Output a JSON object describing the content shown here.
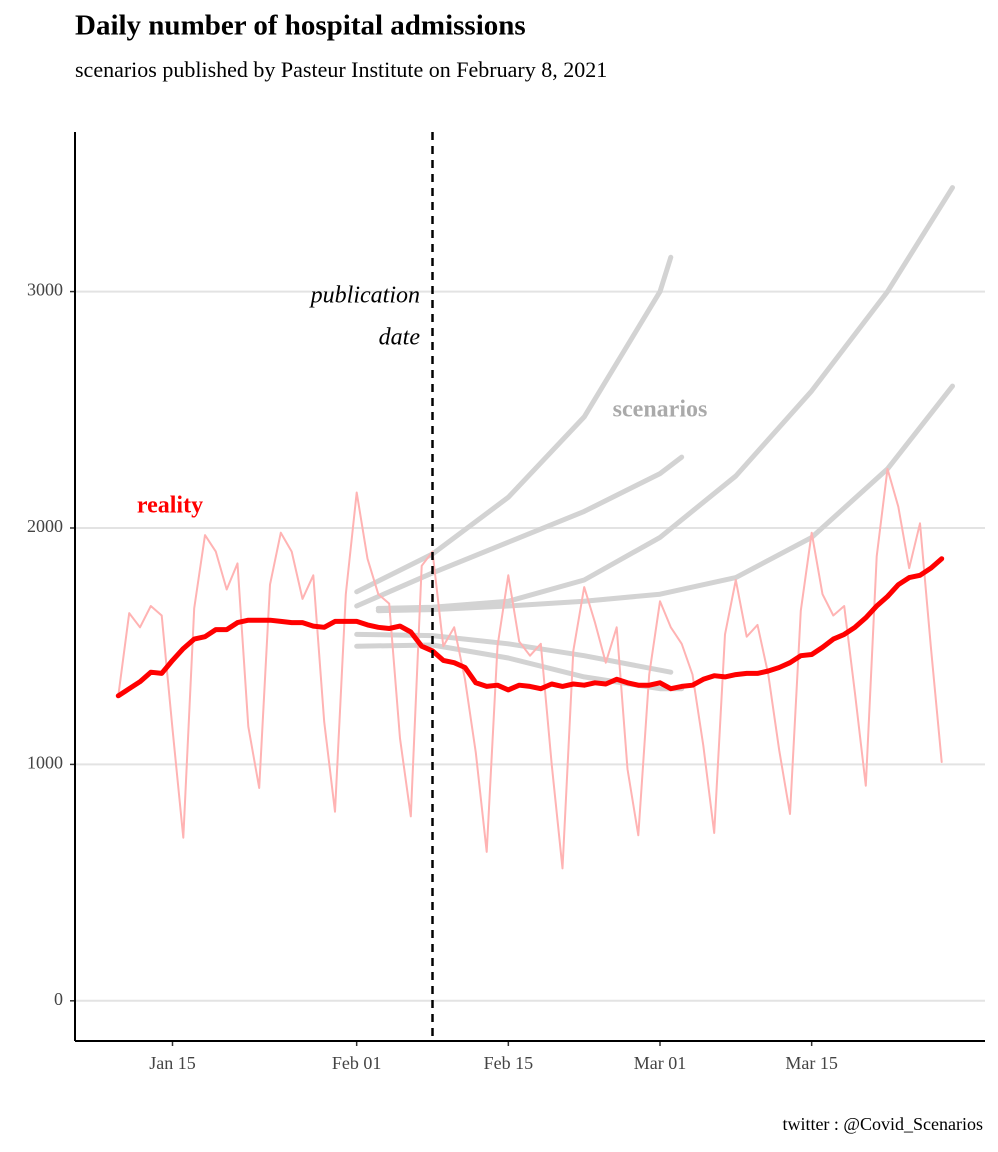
{
  "chart_data": {
    "type": "line",
    "title": "Daily number of hospital admissions",
    "subtitle": "scenarios published by Pasteur Institute on February 8, 2021",
    "caption": "twitter : @Covid_Scenarios",
    "annotations": [
      "publication",
      "date"
    ],
    "x": [
      "01-10",
      "01-11",
      "01-12",
      "01-13",
      "01-14",
      "01-15",
      "01-16",
      "01-17",
      "01-18",
      "01-19",
      "01-20",
      "01-21",
      "01-22",
      "01-23",
      "01-24",
      "01-25",
      "01-26",
      "01-27",
      "01-28",
      "01-29",
      "01-30",
      "01-31",
      "02-01",
      "02-02",
      "02-03",
      "02-04",
      "02-05",
      "02-06",
      "02-07",
      "02-08",
      "02-09",
      "02-10",
      "02-11",
      "02-12",
      "02-13",
      "02-14",
      "02-15",
      "02-16",
      "02-17",
      "02-18",
      "02-19",
      "02-20",
      "02-21",
      "02-22",
      "02-23",
      "02-24",
      "02-25",
      "02-26",
      "02-27",
      "02-28",
      "03-01",
      "03-02",
      "03-03",
      "03-04",
      "03-05",
      "03-06",
      "03-07",
      "03-08",
      "03-09",
      "03-10",
      "03-11",
      "03-12",
      "03-13",
      "03-14",
      "03-15",
      "03-16",
      "03-17",
      "03-18",
      "03-19",
      "03-20",
      "03-21",
      "03-22",
      "03-23",
      "03-24",
      "03-25",
      "03-26",
      "03-27"
    ],
    "series": [
      {
        "color": "#ffb3b3",
        "values": [
          1290,
          1640,
          1580,
          1670,
          1630,
          1150,
          690,
          1660,
          1970,
          1900,
          1740,
          1850,
          1160,
          900,
          1760,
          1980,
          1900,
          1700,
          1800,
          1180,
          800,
          1720,
          2150,
          1870,
          1720,
          1680,
          1110,
          780,
          1840,
          1900,
          1500,
          1580,
          1360,
          1050,
          630,
          1500,
          1800,
          1520,
          1460,
          1510,
          1000,
          560,
          1480,
          1750,
          1600,
          1430,
          1580,
          980,
          700,
          1380,
          1690,
          1580,
          1510,
          1380,
          1080,
          710,
          1550,
          1780,
          1540,
          1590,
          1380,
          1060,
          790,
          1650,
          1980,
          1720,
          1630,
          1670,
          1300,
          910,
          1880,
          2250,
          2090,
          1830,
          2020,
          1500,
          1010
        ]
      },
      {
        "name": "reality",
        "color": "#ff0000",
        "values": [
          1290,
          1320,
          1350,
          1390,
          1385,
          1440,
          1490,
          1530,
          1540,
          1570,
          1570,
          1600,
          1610,
          1610,
          1610,
          1605,
          1600,
          1600,
          1585,
          1580,
          1605,
          1605,
          1605,
          1590,
          1580,
          1575,
          1585,
          1560,
          1500,
          1480,
          1440,
          1430,
          1410,
          1345,
          1330,
          1335,
          1315,
          1335,
          1330,
          1320,
          1340,
          1330,
          1340,
          1335,
          1345,
          1340,
          1360,
          1345,
          1335,
          1335,
          1345,
          1320,
          1330,
          1335,
          1360,
          1375,
          1370,
          1380,
          1385,
          1385,
          1395,
          1410,
          1430,
          1460,
          1465,
          1495,
          1530,
          1550,
          1580,
          1620,
          1670,
          1710,
          1760,
          1790,
          1800,
          1830,
          1870
        ]
      }
    ],
    "scenarios": {
      "name": "scenarios",
      "color": "#d3d3d3",
      "lines": [
        {
          "x": [
            "02-01",
            "02-08",
            "02-15",
            "02-22",
            "03-01",
            "03-02"
          ],
          "values": [
            1730,
            1890,
            2130,
            2470,
            3000,
            3145
          ]
        },
        {
          "x": [
            "02-01",
            "02-08",
            "02-15",
            "02-22",
            "03-01",
            "03-03"
          ],
          "values": [
            1670,
            1810,
            1940,
            2070,
            2230,
            2300
          ]
        },
        {
          "x": [
            "02-03",
            "02-08",
            "02-15",
            "02-22",
            "03-01",
            "03-08",
            "03-15",
            "03-22",
            "03-28"
          ],
          "values": [
            1660,
            1665,
            1690,
            1780,
            1960,
            2220,
            2580,
            3000,
            3440
          ]
        },
        {
          "x": [
            "02-03",
            "02-08",
            "02-15",
            "02-22",
            "03-01",
            "03-08",
            "03-15",
            "03-22",
            "03-28"
          ],
          "values": [
            1650,
            1655,
            1670,
            1690,
            1720,
            1790,
            1960,
            2250,
            2600
          ]
        },
        {
          "x": [
            "02-01",
            "02-08",
            "02-15",
            "02-22",
            "03-02"
          ],
          "values": [
            1550,
            1545,
            1510,
            1460,
            1390
          ]
        },
        {
          "x": [
            "02-01",
            "02-08",
            "02-15",
            "02-22",
            "03-01",
            "03-03"
          ],
          "values": [
            1500,
            1505,
            1450,
            1370,
            1320,
            1320
          ]
        }
      ]
    },
    "vline": "02-08",
    "xlim": [
      "01-06",
      "03-31"
    ],
    "xticks": [
      {
        "value": "01-15",
        "label": "Jan 15"
      },
      {
        "value": "02-01",
        "label": "Feb 01"
      },
      {
        "value": "02-15",
        "label": "Feb 15"
      },
      {
        "value": "03-01",
        "label": "Mar 01"
      },
      {
        "value": "03-15",
        "label": "Mar 15"
      }
    ],
    "ylim": [
      -170,
      3675
    ],
    "yticks": [
      0,
      1000,
      2000,
      3000
    ],
    "grid": true
  }
}
